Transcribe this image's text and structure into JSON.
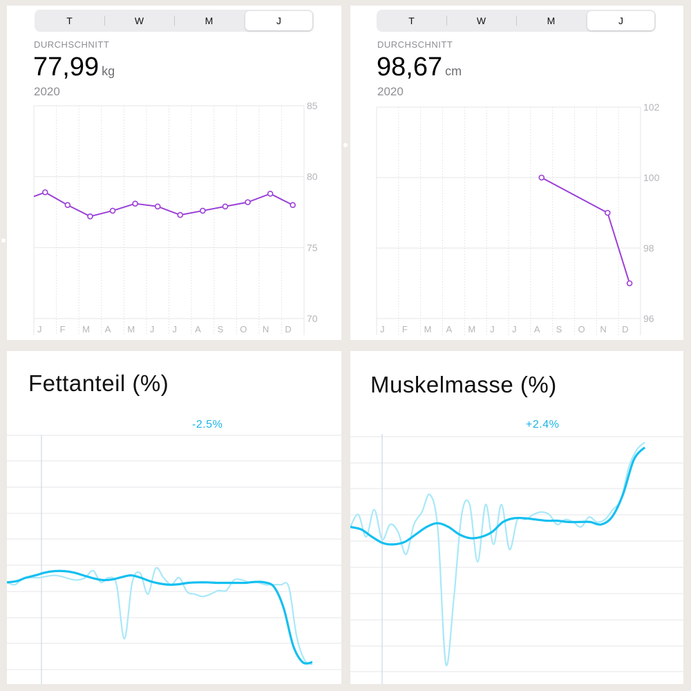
{
  "panels": {
    "weight": {
      "segments": [
        "T",
        "W",
        "M",
        "J"
      ],
      "active_segment": 3,
      "avg_label": "DURCHSCHNITT",
      "avg_value": "77,99",
      "unit": "kg",
      "year": "2020"
    },
    "waist": {
      "segments": [
        "T",
        "W",
        "M",
        "J"
      ],
      "active_segment": 3,
      "avg_label": "DURCHSCHNITT",
      "avg_value": "98,67",
      "unit": "cm",
      "year": "2020"
    },
    "fat": {
      "title": "Fettanteil (%)",
      "delta": "-2.5%"
    },
    "muscle": {
      "title": "Muskelmasse (%)",
      "delta": "+2.4%"
    }
  },
  "colors": {
    "purple": "#9b3fd6",
    "cyan": "#14bff0",
    "cyan_light": "#a9e8f8",
    "grid": "#e6e6ea",
    "axis_text": "#b5b5ba"
  },
  "chart_data": [
    {
      "type": "line",
      "categories": [
        "J",
        "F",
        "M",
        "A",
        "M",
        "J",
        "J",
        "A",
        "S",
        "O",
        "N",
        "D"
      ],
      "values": [
        78.9,
        78.0,
        77.2,
        77.6,
        78.1,
        77.9,
        77.3,
        77.6,
        77.9,
        78.2,
        78.8,
        78.0
      ],
      "y_ticks": [
        85,
        80,
        75,
        70
      ],
      "ylim": [
        70,
        85
      ],
      "grid": true
    },
    {
      "type": "line",
      "categories": [
        "J",
        "F",
        "M",
        "A",
        "M",
        "J",
        "J",
        "A",
        "S",
        "O",
        "N",
        "D"
      ],
      "values": [
        null,
        null,
        null,
        null,
        null,
        null,
        null,
        100,
        null,
        null,
        99,
        97
      ],
      "y_ticks": [
        102,
        100,
        98,
        96
      ],
      "ylim": [
        96,
        102
      ],
      "grid": true
    },
    {
      "type": "line",
      "title": "Fettanteil (%)",
      "annotation": "-2.5%",
      "series": [
        {
          "values": [
            0.3,
            0.2,
            0.45,
            0.5,
            0.5,
            0.55,
            0.6,
            0.55,
            0.45,
            0.4,
            0.5,
            0.8,
            0.3,
            0.5,
            0.2,
            -2.1,
            0.3,
            0.7,
            -0.2,
            0.9,
            0.5,
            0.2,
            0.5,
            -0.1,
            -0.2,
            -0.3,
            -0.2,
            -0.05,
            -0.05,
            0.4,
            0.4,
            0.3,
            0.3,
            0.2,
            0.2,
            0.2,
            0.1,
            -2.0,
            -3.0,
            -3.2
          ]
        },
        {
          "values": [
            0.3,
            0.35,
            0.5,
            0.6,
            0.72,
            0.78,
            0.78,
            0.72,
            0.6,
            0.48,
            0.4,
            0.42,
            0.52,
            0.6,
            0.5,
            0.35,
            0.25,
            0.2,
            0.22,
            0.28,
            0.3,
            0.3,
            0.28,
            0.28,
            0.28,
            0.28,
            0.32,
            0.3,
            0.1,
            -0.8,
            -2.4,
            -3.1,
            -3.1
          ]
        }
      ]
    },
    {
      "type": "line",
      "title": "Muskelmasse (%)",
      "annotation": "+2.4%",
      "series": [
        {
          "values": [
            -0.1,
            0.4,
            -0.5,
            0.6,
            -0.6,
            0.0,
            -0.3,
            -1.2,
            0.0,
            0.5,
            1.2,
            -0.2,
            -5.6,
            -3.0,
            0.4,
            0.8,
            -1.5,
            0.8,
            -0.8,
            0.8,
            -1.0,
            0.2,
            0.2,
            0.4,
            0.5,
            0.4,
            0.0,
            0.2,
            0.1,
            -0.1,
            0.3,
            0.1,
            0.2,
            0.6,
            1.0,
            2.3,
            3.0,
            3.3
          ]
        },
        {
          "values": [
            -0.1,
            -0.2,
            -0.5,
            -0.75,
            -0.8,
            -0.7,
            -0.4,
            -0.1,
            0.05,
            -0.1,
            -0.4,
            -0.55,
            -0.5,
            -0.3,
            0.1,
            0.25,
            0.25,
            0.2,
            0.15,
            0.15,
            0.1,
            0.1,
            0.1,
            0.0,
            0.3,
            1.2,
            2.6,
            3.1
          ]
        }
      ]
    }
  ]
}
